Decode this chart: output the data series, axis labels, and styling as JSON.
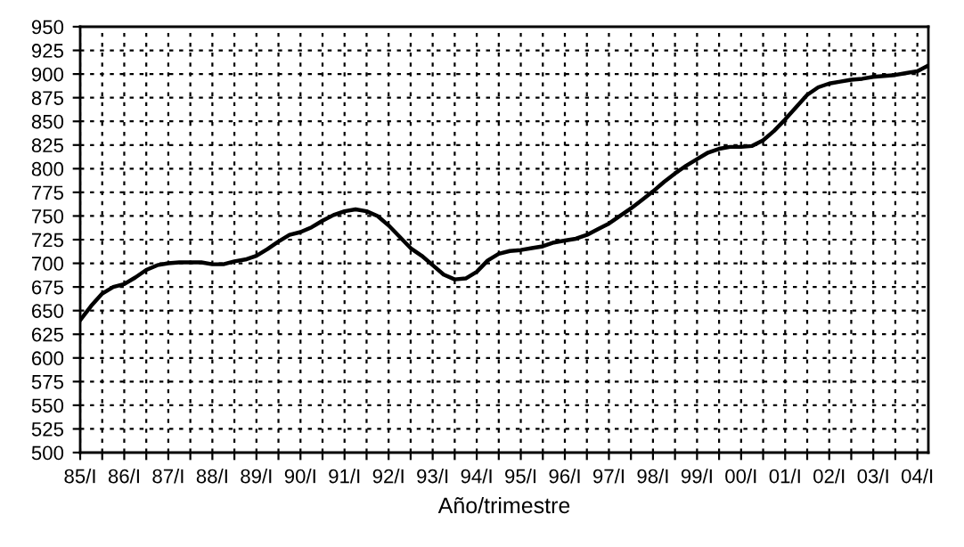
{
  "chart_data": {
    "type": "line",
    "xlabel": "Año/trimestre",
    "categories": [
      "85/I",
      null,
      null,
      null,
      "86/I",
      null,
      null,
      null,
      "87/I",
      null,
      null,
      null,
      "88/I",
      null,
      null,
      null,
      "89/I",
      null,
      null,
      null,
      "90/I",
      null,
      null,
      null,
      "91/I",
      null,
      null,
      null,
      "92/I",
      null,
      null,
      null,
      "93/I",
      null,
      null,
      null,
      "94/I",
      null,
      null,
      null,
      "95/I",
      null,
      null,
      null,
      "96/I",
      null,
      null,
      null,
      "97/I",
      null,
      null,
      null,
      "98/I",
      null,
      null,
      null,
      "99/I",
      null,
      null,
      null,
      "00/I",
      null,
      null,
      null,
      "01/I",
      null,
      null,
      null,
      "02/I",
      null,
      null,
      null,
      "03/I",
      null,
      null,
      null,
      "04/I",
      null
    ],
    "series": [
      {
        "color": "#000000",
        "values": [
          640,
          655,
          668,
          675,
          678,
          685,
          693,
          698,
          700,
          701,
          701,
          701,
          699,
          699,
          702,
          704,
          708,
          715,
          723,
          730,
          733,
          738,
          745,
          751,
          755,
          757,
          755,
          750,
          740,
          728,
          716,
          708,
          698,
          688,
          683,
          684,
          691,
          703,
          710,
          713,
          714,
          716,
          718,
          722,
          724,
          726,
          730,
          736,
          742,
          750,
          758,
          767,
          776,
          786,
          795,
          803,
          810,
          817,
          821,
          823,
          823,
          824,
          830,
          840,
          852,
          865,
          878,
          886,
          890,
          892,
          894,
          895,
          897,
          898,
          899,
          901,
          903,
          909
        ]
      }
    ],
    "ylim": [
      500,
      950
    ],
    "yticks": [
      500,
      525,
      550,
      575,
      600,
      625,
      650,
      675,
      700,
      725,
      750,
      775,
      800,
      825,
      850,
      875,
      900,
      925,
      950
    ],
    "grid": true,
    "marker": "none",
    "line_style": "solid",
    "legend": false
  }
}
